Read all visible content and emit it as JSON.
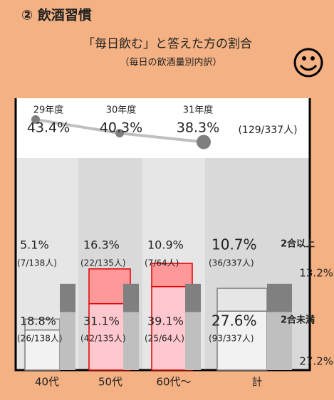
{
  "header": {
    "title": "② 飲酒習慣",
    "subtitle": "「毎日飲む」と答えた方の割合",
    "subtitle2": "（毎日の飲酒量別内訳）"
  },
  "trend": {
    "years": [
      "29年度",
      "30年度",
      "31年度"
    ],
    "values": [
      43.4,
      40.3,
      38.3
    ],
    "value_labels": [
      "43.4%",
      "40.3%",
      "38.3%"
    ],
    "count": "(129/337人)"
  },
  "breakdown": {
    "categories": [
      "40代",
      "50代",
      "60代～",
      "計"
    ],
    "ylim": [
      0,
      100
    ],
    "series": [
      {
        "name": "2合未満",
        "values": [
          18.8,
          31.1,
          39.1,
          27.6
        ],
        "value_labels": [
          "18.8%",
          "31.1%",
          "39.1%",
          "27.6%"
        ],
        "counts": [
          "(26/138人)",
          "(42/135人)",
          "(25/64人)",
          "(93/337人)"
        ]
      },
      {
        "name": "2合以上",
        "values": [
          5.1,
          16.3,
          10.9,
          10.7
        ],
        "value_labels": [
          "5.1%",
          "16.3%",
          "10.9%",
          "10.7%"
        ],
        "counts": [
          "(7/138人)",
          "(22/135人)",
          "(7/64人)",
          "(36/337人)"
        ]
      }
    ],
    "reference": {
      "values": [
        27.2,
        13.2
      ],
      "value_labels": [
        "27.2%",
        "13.2%"
      ]
    }
  }
}
